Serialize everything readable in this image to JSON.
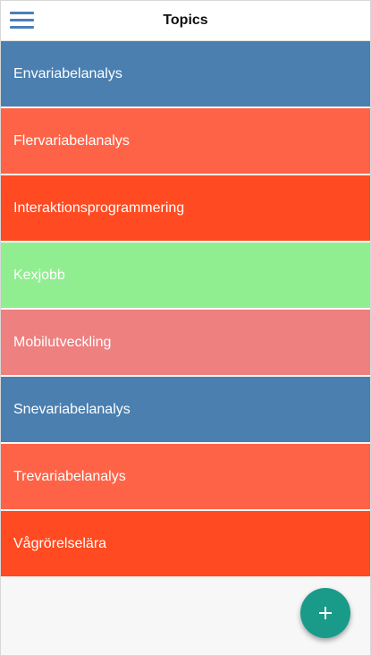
{
  "header": {
    "title": "Topics",
    "menu_icon": "hamburger-menu-icon",
    "menu_icon_color": "#4a7fb8"
  },
  "topics": [
    {
      "label": "Envariabelanalys",
      "color": "#4a7fb0"
    },
    {
      "label": "Flervariabelanalys",
      "color": "#ff6347"
    },
    {
      "label": "Interaktionsprogrammering",
      "color": "#ff4a22"
    },
    {
      "label": "Kexjobb",
      "color": "#90ee90"
    },
    {
      "label": "Mobilutveckling",
      "color": "#ee8080"
    },
    {
      "label": "Snevariabelanalys",
      "color": "#4a7fb0"
    },
    {
      "label": "Trevariabelanalys",
      "color": "#ff6347"
    },
    {
      "label": "Vågrörelselära",
      "color": "#ff4a22"
    }
  ],
  "fab": {
    "icon": "plus-icon",
    "color": "#1a9b89"
  }
}
